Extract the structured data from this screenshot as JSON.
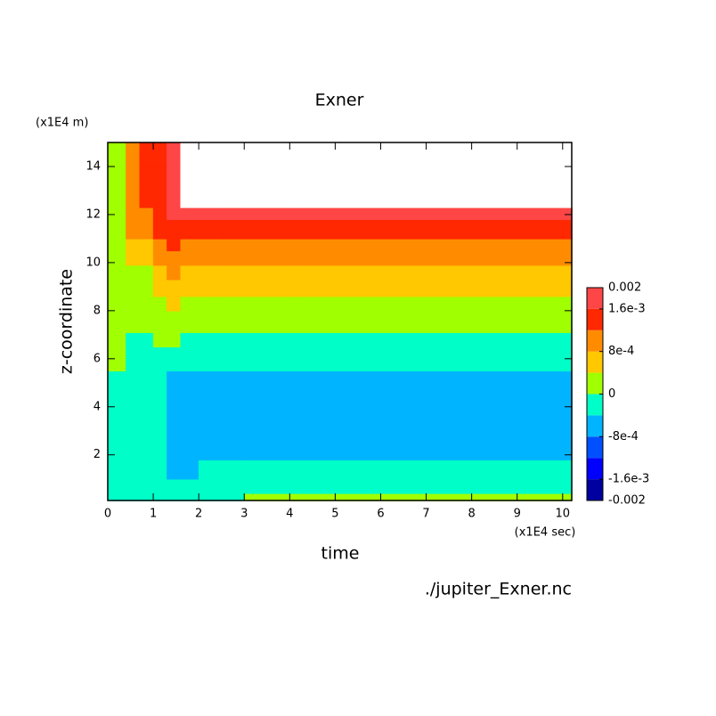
{
  "chart_data": {
    "type": "contour",
    "title": "Exner",
    "x_label": "time",
    "y_label": "z-coordinate",
    "x_unit_label": "(x1E4 sec)",
    "y_unit_label": "(x1E4 m)",
    "file_label": "./jupiter_Exner.nc",
    "xlim": [
      0,
      10.2
    ],
    "ylim": [
      0.1,
      15
    ],
    "xticks": [
      0,
      1,
      2,
      3,
      4,
      5,
      6,
      7,
      8,
      9,
      10
    ],
    "yticks": [
      2,
      4,
      6,
      8,
      10,
      12,
      14
    ],
    "x_edges": [
      0,
      0.4,
      0.7,
      1,
      1.3,
      1.6,
      2,
      2.5,
      3,
      4,
      10.2
    ],
    "y_edges": [
      0.1,
      0.4,
      1,
      1.8,
      3,
      4,
      5.5,
      6.5,
      7.1,
      8,
      8.6,
      9.3,
      9.9,
      10.5,
      11,
      11.8,
      12.3,
      13,
      14,
      15
    ],
    "values": [
      [
        -0.0002,
        -0.0002,
        -0.0002,
        -0.0002,
        -0.0002,
        -0.0002,
        -0.0002,
        -0.0002,
        0.0002,
        0.0002
      ],
      [
        -0.0002,
        -0.0002,
        -0.0002,
        -0.0002,
        -0.0002,
        -0.0002,
        -0.0002,
        -0.0002,
        -0.0002,
        -0.0002
      ],
      [
        -0.0002,
        -0.0002,
        -0.0002,
        -0.0002,
        -0.0006,
        -0.0006,
        -0.0002,
        -0.0002,
        -0.0002,
        -0.0002
      ],
      [
        -0.0002,
        -0.0002,
        -0.0002,
        -0.0002,
        -0.0006,
        -0.0006,
        -0.0006,
        -0.0006,
        -0.0006,
        -0.0006
      ],
      [
        -0.0002,
        -0.0002,
        -0.0002,
        -0.0002,
        -0.0006,
        -0.0006,
        -0.0006,
        -0.0006,
        -0.0006,
        -0.0006
      ],
      [
        -0.0002,
        -0.0002,
        -0.0002,
        -0.0002,
        -0.0006,
        -0.0006,
        -0.0006,
        -0.0006,
        -0.0006,
        -0.0006
      ],
      [
        0.0002,
        -0.0002,
        -0.0002,
        -0.0002,
        -0.0002,
        -0.0002,
        -0.0002,
        -0.0002,
        -0.0002,
        -0.0002
      ],
      [
        0.0002,
        -0.0002,
        -0.0002,
        0.0002,
        0.0002,
        -0.0002,
        -0.0002,
        -0.0002,
        -0.0002,
        -0.0002
      ],
      [
        0.0002,
        0.0002,
        0.0002,
        0.0002,
        0.0002,
        0.0002,
        0.0002,
        0.0002,
        0.0002,
        0.0002
      ],
      [
        0.0002,
        0.0002,
        0.0002,
        0.0002,
        0.0006,
        0.0002,
        0.0002,
        0.0002,
        0.0002,
        0.0002
      ],
      [
        0.0002,
        0.0002,
        0.0002,
        0.0006,
        0.0006,
        0.0006,
        0.0006,
        0.0006,
        0.0006,
        0.0006
      ],
      [
        0.0002,
        0.0002,
        0.0002,
        0.0006,
        0.001,
        0.0006,
        0.0006,
        0.0006,
        0.0006,
        0.0006
      ],
      [
        0.0002,
        0.0006,
        0.0006,
        0.001,
        0.001,
        0.001,
        0.001,
        0.001,
        0.001,
        0.001
      ],
      [
        0.0002,
        0.0006,
        0.0006,
        0.001,
        0.0014,
        0.001,
        0.001,
        0.001,
        0.001,
        0.001
      ],
      [
        0.0002,
        0.001,
        0.001,
        0.0014,
        0.0014,
        0.0014,
        0.0014,
        0.0014,
        0.0014,
        0.0014
      ],
      [
        0.0002,
        0.001,
        0.001,
        0.0014,
        0.0018,
        0.0018,
        0.0018,
        0.0018,
        0.0018,
        0.0018
      ],
      [
        0.0002,
        0.001,
        0.0014,
        0.0014,
        0.0018,
        0.0025,
        0.0025,
        0.0025,
        0.0025,
        0.0025
      ],
      [
        0.0002,
        0.001,
        0.0014,
        0.0014,
        0.0018,
        0.0025,
        0.0025,
        0.0025,
        0.0025,
        0.0025
      ],
      [
        0.0002,
        0.001,
        0.0014,
        0.0014,
        0.0018,
        0.0025,
        0.0025,
        0.0025,
        0.0025,
        0.0025
      ]
    ],
    "levels": [
      -0.002,
      -0.0016,
      -0.0012,
      -0.0008,
      -0.0004,
      0,
      0.0004,
      0.0008,
      0.0012,
      0.0016,
      0.002
    ],
    "colors": [
      "#0000a0",
      "#0000ff",
      "#0050ff",
      "#00b4ff",
      "#00ffc8",
      "#a0ff00",
      "#ffc800",
      "#ff8c00",
      "#ff2800",
      "#ff4646"
    ],
    "over_color": "#ffffff",
    "colorbar_ticks": [
      {
        "value": 0.002,
        "label": "0.002"
      },
      {
        "value": 0.0016,
        "label": "1.6e-3"
      },
      {
        "value": 0.0008,
        "label": "8e-4"
      },
      0,
      {
        "value": -0.0008,
        "label": "-8e-4"
      },
      {
        "value": -0.0016,
        "label": "-1.6e-3"
      },
      {
        "value": -0.002,
        "label": "-0.002"
      }
    ]
  }
}
